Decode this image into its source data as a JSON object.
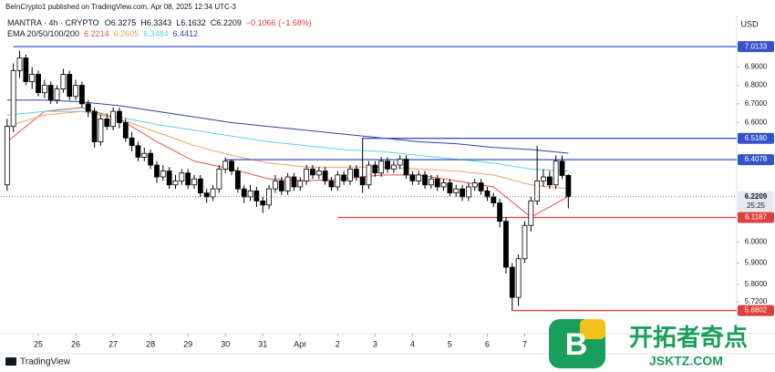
{
  "header": {
    "publisher": "BeInCrypto1 published on TradingView.com, Apr 08, 2025 12:34 UTC-3",
    "footer_brand": "TradingView",
    "watermark_title": "开拓者奇点",
    "watermark_url": "JSKTZ.COM"
  },
  "chart_data": {
    "type": "candlestick",
    "symbol": "MANTRA · 4h · CRYPTO",
    "ohlc_prefixes": [
      "O",
      "H",
      "L",
      "C"
    ],
    "change": "−0.1066 (−1.68%)",
    "indicator": "EMA 20/50/100/200",
    "currency": "USD",
    "countdown": "25:25",
    "log_scale": true,
    "xlim": [
      -1,
      117
    ],
    "ylim": [
      5.58,
      7.19
    ],
    "xticks": [
      {
        "value": 5,
        "label": "25"
      },
      {
        "value": 11,
        "label": "26"
      },
      {
        "value": 17,
        "label": "27"
      },
      {
        "value": 23,
        "label": "28"
      },
      {
        "value": 29,
        "label": "29"
      },
      {
        "value": 35,
        "label": "30"
      },
      {
        "value": 41,
        "label": "31"
      },
      {
        "value": 47,
        "label": "Apr"
      },
      {
        "value": 53,
        "label": "2"
      },
      {
        "value": 59,
        "label": "3"
      },
      {
        "value": 65,
        "label": "4"
      },
      {
        "value": 71,
        "label": "5"
      },
      {
        "value": 77,
        "label": "6"
      },
      {
        "value": 83,
        "label": "7"
      }
    ],
    "yticks": [
      {
        "value": 5.72,
        "label": "5.7200"
      },
      {
        "value": 5.8,
        "label": "5.8000"
      },
      {
        "value": 5.9,
        "label": "5.9000"
      },
      {
        "value": 6.0,
        "label": "6.0000"
      },
      {
        "value": 6.6,
        "label": "6.6000"
      },
      {
        "value": 6.7,
        "label": "6.7000"
      },
      {
        "value": 6.8,
        "label": "6.8000"
      },
      {
        "value": 6.9,
        "label": "6.9000"
      }
    ],
    "up_color": "#ffffff",
    "down_color": "#000000",
    "open": [
      6.28,
      6.58,
      6.88,
      6.95,
      6.82,
      6.86,
      6.76,
      6.8,
      6.72,
      6.78,
      6.86,
      6.74,
      6.8,
      6.7,
      6.66,
      6.5,
      6.62,
      6.58,
      6.66,
      6.6,
      6.52,
      6.48,
      6.42,
      6.44,
      6.38,
      6.32,
      6.35,
      6.28,
      6.3,
      6.34,
      6.28,
      6.31,
      6.24,
      6.22,
      6.26,
      6.36,
      6.4,
      6.35,
      6.26,
      6.22,
      6.25,
      6.2,
      6.18,
      6.26,
      6.3,
      6.25,
      6.32,
      6.27,
      6.3,
      6.36,
      6.33,
      6.35,
      6.3,
      6.27,
      6.33,
      6.3,
      6.36,
      6.32,
      6.28,
      6.38,
      6.34,
      6.4,
      6.36,
      6.38,
      6.41,
      6.33,
      6.3,
      6.33,
      6.28,
      6.31,
      6.27,
      6.29,
      6.24,
      6.26,
      6.22,
      6.27,
      6.29,
      6.25,
      6.22,
      6.19,
      6.1,
      5.88,
      5.74,
      5.92,
      6.08,
      6.2,
      6.3,
      6.32,
      6.28,
      6.4,
      6.3275
    ],
    "high": [
      6.62,
      6.92,
      6.99,
      6.97,
      6.9,
      6.88,
      6.83,
      6.82,
      6.8,
      6.89,
      6.88,
      6.83,
      6.82,
      6.72,
      6.68,
      6.64,
      6.65,
      6.68,
      6.68,
      6.62,
      6.55,
      6.5,
      6.47,
      6.46,
      6.4,
      6.38,
      6.37,
      6.33,
      6.36,
      6.36,
      6.33,
      6.33,
      6.26,
      6.28,
      6.38,
      6.42,
      6.41,
      6.37,
      6.28,
      6.28,
      6.27,
      6.22,
      6.28,
      6.33,
      6.32,
      6.34,
      6.34,
      6.32,
      6.38,
      6.38,
      6.37,
      6.37,
      6.32,
      6.35,
      6.35,
      6.38,
      6.38,
      6.52,
      6.4,
      6.4,
      6.42,
      6.42,
      6.4,
      6.43,
      6.43,
      6.35,
      6.35,
      6.35,
      6.33,
      6.33,
      6.31,
      6.31,
      6.28,
      6.28,
      6.29,
      6.31,
      6.31,
      6.27,
      6.24,
      6.21,
      6.12,
      5.9,
      5.94,
      6.1,
      6.22,
      6.48,
      6.36,
      6.35,
      6.43,
      6.43,
      6.3343
    ],
    "low": [
      6.25,
      6.55,
      6.84,
      6.8,
      6.78,
      6.74,
      6.73,
      6.7,
      6.7,
      6.76,
      6.72,
      6.72,
      6.68,
      6.63,
      6.47,
      6.48,
      6.56,
      6.56,
      6.57,
      6.5,
      6.45,
      6.4,
      6.4,
      6.36,
      6.29,
      6.3,
      6.26,
      6.26,
      6.28,
      6.26,
      6.26,
      6.22,
      6.19,
      6.2,
      6.24,
      6.34,
      6.33,
      6.24,
      6.19,
      6.2,
      6.17,
      6.14,
      6.16,
      6.24,
      6.23,
      6.23,
      6.25,
      6.25,
      6.28,
      6.31,
      6.31,
      6.28,
      6.25,
      6.25,
      6.28,
      6.28,
      6.3,
      6.24,
      6.26,
      6.32,
      6.32,
      6.34,
      6.34,
      6.36,
      6.31,
      6.28,
      6.28,
      6.26,
      6.26,
      6.25,
      6.25,
      6.22,
      6.22,
      6.2,
      6.2,
      6.25,
      6.23,
      6.2,
      6.17,
      6.07,
      5.85,
      5.68,
      5.7,
      5.9,
      6.05,
      6.18,
      6.27,
      6.26,
      6.26,
      6.31,
      6.1632
    ],
    "close": [
      6.58,
      6.88,
      6.95,
      6.82,
      6.86,
      6.76,
      6.8,
      6.72,
      6.78,
      6.86,
      6.74,
      6.8,
      6.7,
      6.66,
      6.5,
      6.62,
      6.58,
      6.66,
      6.6,
      6.52,
      6.48,
      6.42,
      6.44,
      6.38,
      6.32,
      6.35,
      6.28,
      6.3,
      6.34,
      6.28,
      6.31,
      6.24,
      6.22,
      6.26,
      6.36,
      6.4,
      6.35,
      6.26,
      6.22,
      6.25,
      6.2,
      6.18,
      6.26,
      6.3,
      6.25,
      6.32,
      6.27,
      6.3,
      6.36,
      6.33,
      6.35,
      6.3,
      6.27,
      6.33,
      6.3,
      6.36,
      6.32,
      6.28,
      6.38,
      6.34,
      6.4,
      6.36,
      6.38,
      6.41,
      6.33,
      6.3,
      6.33,
      6.28,
      6.31,
      6.27,
      6.29,
      6.24,
      6.26,
      6.22,
      6.27,
      6.29,
      6.25,
      6.22,
      6.19,
      6.1,
      5.88,
      5.74,
      5.92,
      6.08,
      6.2,
      6.3,
      6.32,
      6.28,
      6.4,
      6.3275,
      6.2209
    ],
    "ema_x": [
      0,
      6,
      12,
      18,
      24,
      30,
      36,
      42,
      48,
      54,
      60,
      66,
      72,
      78,
      84,
      90
    ],
    "series": [
      {
        "color": "#e8504a",
        "values": [
          6.5,
          6.66,
          6.68,
          6.62,
          6.5,
          6.4,
          6.36,
          6.31,
          6.3,
          6.31,
          6.33,
          6.33,
          6.3,
          6.27,
          6.12,
          6.2214
        ]
      },
      {
        "color": "#f0a060",
        "values": [
          6.58,
          6.64,
          6.66,
          6.62,
          6.55,
          6.48,
          6.43,
          6.39,
          6.37,
          6.37,
          6.37,
          6.36,
          6.35,
          6.33,
          6.28,
          6.2605
        ]
      },
      {
        "color": "#5fd3e0",
        "values": [
          6.64,
          6.66,
          6.66,
          6.63,
          6.59,
          6.56,
          6.53,
          6.5,
          6.48,
          6.46,
          6.45,
          6.43,
          6.41,
          6.39,
          6.36,
          6.3484
        ]
      },
      {
        "color": "#3a3aa8",
        "values": [
          6.72,
          6.72,
          6.71,
          6.69,
          6.66,
          6.63,
          6.6,
          6.58,
          6.56,
          6.54,
          6.52,
          6.5,
          6.49,
          6.47,
          6.46,
          6.4412
        ]
      }
    ],
    "levels": [
      {
        "value": 7.0133,
        "label": "7.0133",
        "from": 1,
        "color": "#3552c8"
      },
      {
        "value": 6.518,
        "label": "6.5180",
        "from": 57,
        "color": "#3552c8"
      },
      {
        "value": 6.4078,
        "label": "6.4078",
        "from": 35,
        "color": "#3552c8"
      },
      {
        "value": 6.1187,
        "label": "6.1187",
        "from": 53,
        "color": "#e0403c"
      },
      {
        "value": 5.6802,
        "label": "5.6802",
        "from": 81,
        "color": "#e0403c"
      }
    ]
  }
}
